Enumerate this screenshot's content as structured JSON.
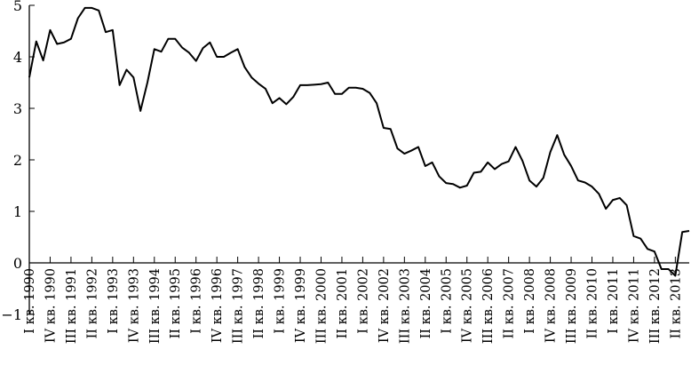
{
  "chart_data": {
    "type": "line",
    "title": "",
    "xlabel": "",
    "ylabel": "",
    "ylim": [
      -1,
      5
    ],
    "yticks": [
      "−1",
      "0",
      "1",
      "2",
      "3",
      "4",
      "5"
    ],
    "grid": false,
    "legend": "none",
    "x_tick_labels": [
      "I кв. 1990",
      "IV кв. 1990",
      "III кв. 1991",
      "II кв. 1992",
      "I кв. 1993",
      "IV кв. 1993",
      "III кв. 1994",
      "II кв. 1995",
      "I кв. 1996",
      "IV кв. 1996",
      "III кв. 1997",
      "II кв. 1998",
      "I кв. 1999",
      "IV кв. 1999",
      "III кв. 2000",
      "II кв. 2001",
      "I кв. 2002",
      "IV кв. 2002",
      "III кв. 2003",
      "II кв. 2004",
      "I кв. 2005",
      "IV кв. 2005",
      "III кв. 2006",
      "II кв. 2007",
      "I кв. 2008",
      "IV кв. 2008",
      "III кв. 2009",
      "II кв. 2010",
      "I кв. 2011",
      "IV кв. 2011",
      "III кв. 2012",
      "II кв. 2013"
    ],
    "quarters": [
      "I кв. 1990",
      "II кв. 1990",
      "III кв. 1990",
      "IV кв. 1990",
      "I кв. 1991",
      "II кв. 1991",
      "III кв. 1991",
      "IV кв. 1991",
      "I кв. 1992",
      "II кв. 1992",
      "III кв. 1992",
      "IV кв. 1992",
      "I кв. 1993",
      "II кв. 1993",
      "III кв. 1993",
      "IV кв. 1993",
      "I кв. 1994",
      "II кв. 1994",
      "III кв. 1994",
      "IV кв. 1994",
      "I кв. 1995",
      "II кв. 1995",
      "III кв. 1995",
      "IV кв. 1995",
      "I кв. 1996",
      "II кв. 1996",
      "III кв. 1996",
      "IV кв. 1996",
      "I кв. 1997",
      "II кв. 1997",
      "III кв. 1997",
      "IV кв. 1997",
      "I кв. 1998",
      "II кв. 1998",
      "III кв. 1998",
      "IV кв. 1998",
      "I кв. 1999",
      "II кв. 1999",
      "III кв. 1999",
      "IV кв. 1999",
      "I кв. 2000",
      "II кв. 2000",
      "III кв. 2000",
      "IV кв. 2000",
      "I кв. 2001",
      "II кв. 2001",
      "III кв. 2001",
      "IV кв. 2001",
      "I кв. 2002",
      "II кв. 2002",
      "III кв. 2002",
      "IV кв. 2002",
      "I кв. 2003",
      "II кв. 2003",
      "III кв. 2003",
      "IV кв. 2003",
      "I кв. 2004",
      "II кв. 2004",
      "III кв. 2004",
      "IV кв. 2004",
      "I кв. 2005",
      "II кв. 2005",
      "III кв. 2005",
      "IV кв. 2005",
      "I кв. 2006",
      "II кв. 2006",
      "III кв. 2006",
      "IV кв. 2006",
      "I кв. 2007",
      "II кв. 2007",
      "III кв. 2007",
      "IV кв. 2007",
      "I кв. 2008",
      "II кв. 2008",
      "III кв. 2008",
      "IV кв. 2008",
      "I кв. 2009",
      "II кв. 2009",
      "III кв. 2009",
      "IV кв. 2009",
      "I кв. 2010",
      "II кв. 2010",
      "III кв. 2010",
      "IV кв. 2010",
      "I кв. 2011",
      "II кв. 2011",
      "III кв. 2011",
      "IV кв. 2011",
      "I кв. 2012",
      "II кв. 2012",
      "III кв. 2012",
      "IV кв. 2012",
      "I кв. 2013",
      "II кв. 2013",
      "III кв. 2013",
      "IV кв. 2013"
    ],
    "values": [
      3.6,
      4.3,
      3.93,
      4.52,
      4.25,
      4.28,
      4.35,
      4.75,
      4.95,
      4.95,
      4.9,
      4.48,
      4.52,
      3.45,
      3.75,
      3.6,
      2.95,
      3.5,
      4.15,
      4.1,
      4.35,
      4.35,
      4.18,
      4.08,
      3.92,
      4.17,
      4.28,
      4.0,
      4.0,
      4.08,
      4.15,
      3.8,
      3.6,
      3.48,
      3.38,
      3.1,
      3.2,
      3.08,
      3.22,
      3.45,
      3.45,
      3.46,
      3.47,
      3.5,
      3.28,
      3.28,
      3.4,
      3.4,
      3.38,
      3.3,
      3.1,
      2.62,
      2.6,
      2.22,
      2.12,
      2.18,
      2.25,
      1.88,
      1.95,
      1.68,
      1.55,
      1.53,
      1.46,
      1.5,
      1.75,
      1.77,
      1.95,
      1.82,
      1.92,
      1.97,
      2.25,
      1.98,
      1.6,
      1.48,
      1.65,
      2.15,
      2.48,
      2.1,
      1.88,
      1.6,
      1.56,
      1.48,
      1.34,
      1.05,
      1.22,
      1.26,
      1.12,
      0.52,
      0.47,
      0.27,
      0.22,
      -0.12,
      -0.12,
      -0.25,
      0.6,
      0.62
    ]
  }
}
